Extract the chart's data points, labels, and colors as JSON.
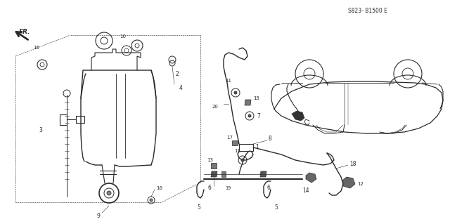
{
  "bg_color": "#ffffff",
  "line_color": "#2a2a2a",
  "fig_width": 6.4,
  "fig_height": 3.19,
  "dpi": 100,
  "diagram_code": "S823- B1500 E"
}
